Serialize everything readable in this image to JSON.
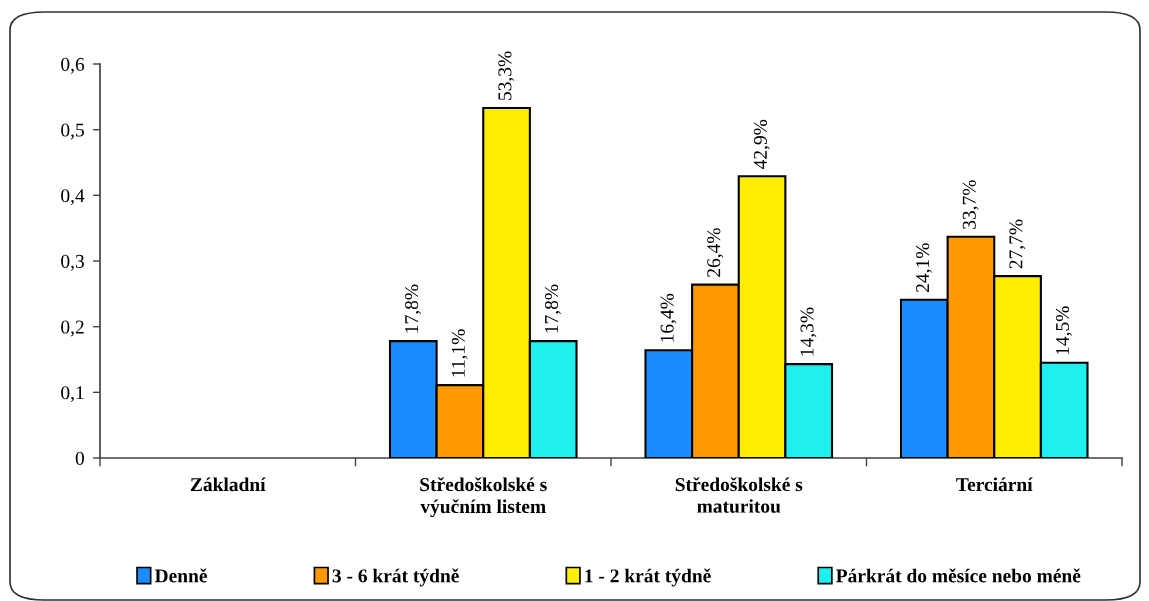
{
  "chart_data": {
    "type": "bar",
    "categories": [
      "Základní",
      "Středoškolské s výučním listem",
      "Středoškolské s maturitou",
      "Terciární"
    ],
    "series": [
      {
        "name": "Denně",
        "color": "#1a8cff",
        "values": [
          null,
          0.178,
          0.164,
          0.241
        ],
        "value_labels": [
          null,
          "17,8%",
          "16,4%",
          "24,1%"
        ]
      },
      {
        "name": "3 - 6 krát týdně",
        "color": "#ff9900",
        "values": [
          null,
          0.111,
          0.264,
          0.337
        ],
        "value_labels": [
          null,
          "11,1%",
          "26,4%",
          "33,7%"
        ]
      },
      {
        "name": "1 - 2 krát týdně",
        "color": "#ffee00",
        "values": [
          null,
          0.533,
          0.429,
          0.277
        ],
        "value_labels": [
          null,
          "53,3%",
          "42,9%",
          "27,7%"
        ]
      },
      {
        "name": "Párkrát do měsíce nebo méně",
        "color": "#1ef0f0",
        "values": [
          null,
          0.178,
          0.143,
          0.145
        ],
        "value_labels": [
          null,
          "17,8%",
          "14,3%",
          "14,5%"
        ]
      }
    ],
    "ylim": [
      0,
      0.6
    ],
    "yticks": [
      0,
      {
        "value": 0.1,
        "label": "0,1"
      },
      {
        "value": 0.2,
        "label": "0,2"
      },
      {
        "value": 0.3,
        "label": "0,3"
      },
      {
        "value": 0.4,
        "label": "0,4"
      },
      {
        "value": 0.5,
        "label": "0,5"
      },
      {
        "value": 0.6,
        "label": "0,6"
      }
    ],
    "legend": "bottom"
  }
}
